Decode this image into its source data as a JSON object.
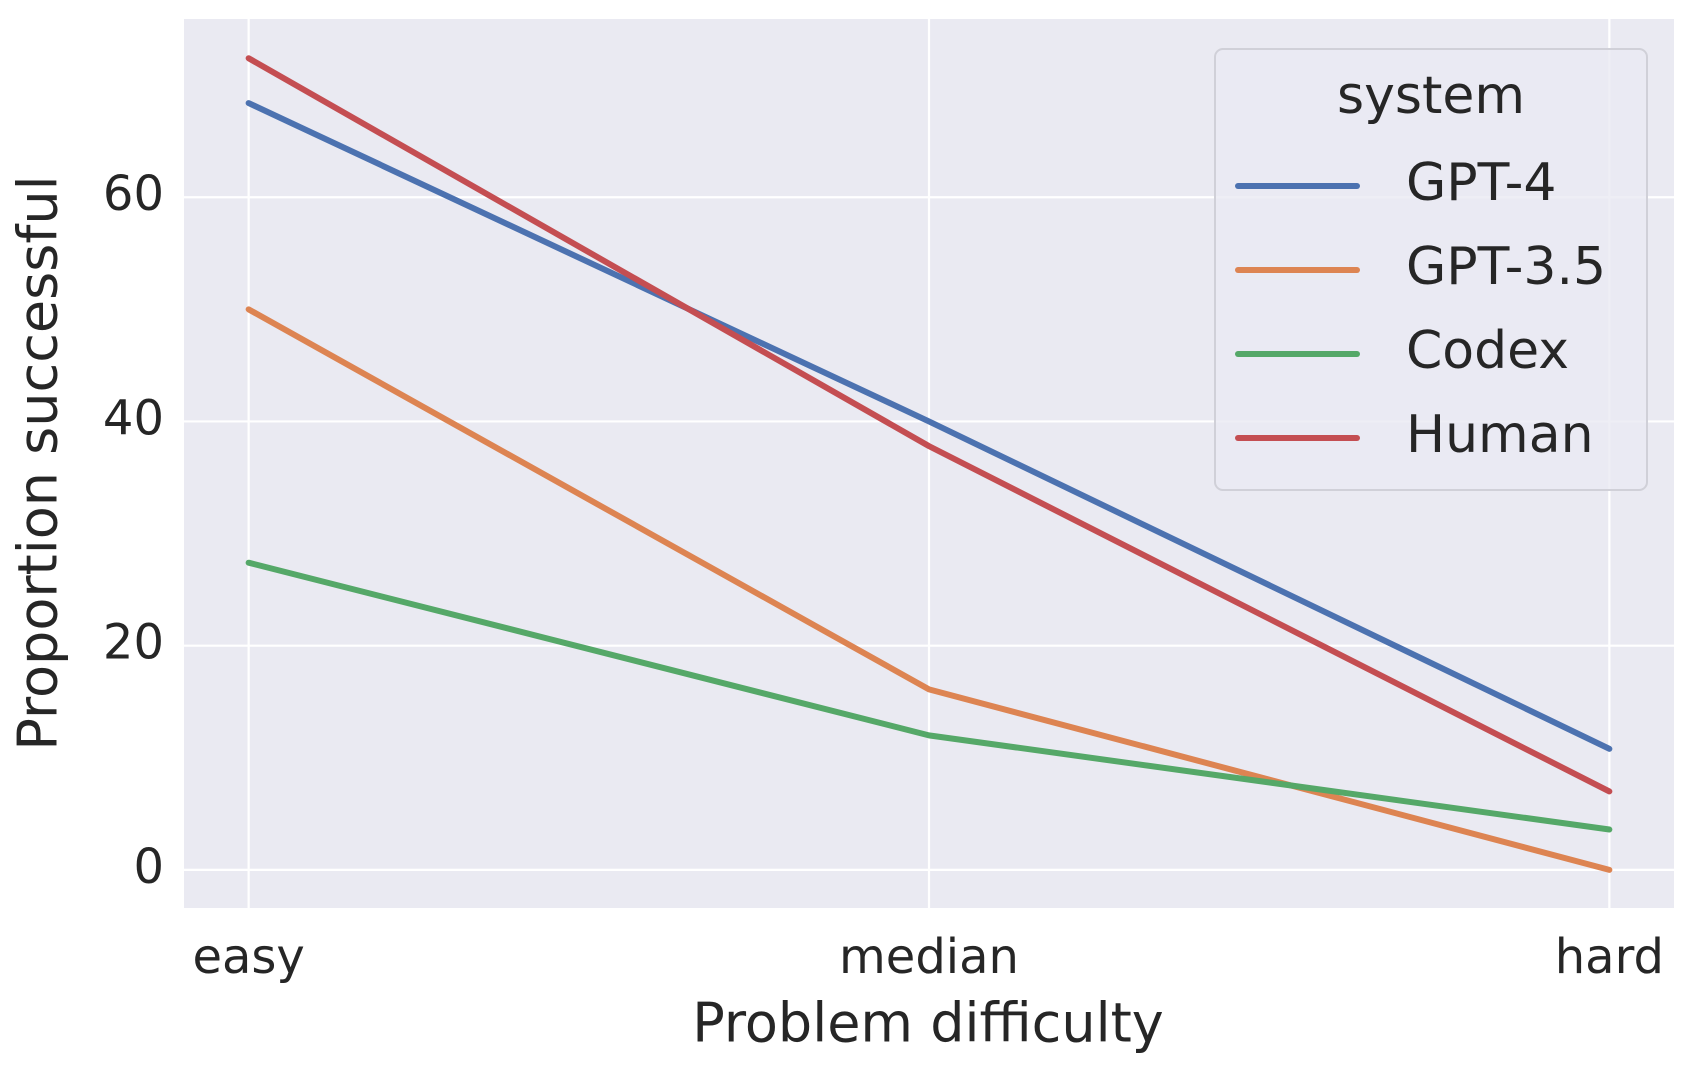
{
  "chart_data": {
    "type": "line",
    "x_label": "Problem difficulty",
    "y_label": "Proportion successful",
    "categories": [
      "easy",
      "median",
      "hard"
    ],
    "series": [
      {
        "name": "GPT-4",
        "color": "#4c72b0",
        "values": [
          68.4,
          40,
          10.8
        ]
      },
      {
        "name": "GPT-3.5",
        "color": "#dd8452",
        "values": [
          50,
          16.1,
          0
        ]
      },
      {
        "name": "Codex",
        "color": "#55a868",
        "values": [
          27.4,
          12,
          3.6
        ]
      },
      {
        "name": "Human",
        "color": "#c44e52",
        "values": [
          72.4,
          37.8,
          7
        ]
      }
    ],
    "ylim": [
      -3.4,
      75.9
    ],
    "yticks": [
      0,
      20,
      40,
      60
    ],
    "grid": true,
    "legend_title": "system",
    "legend_position": "upper right"
  }
}
